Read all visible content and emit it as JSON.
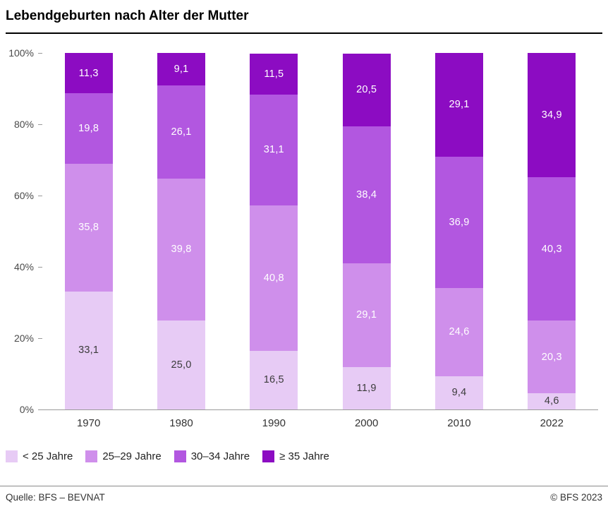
{
  "header": {
    "title": "Lebendgeburten nach Alter der Mutter"
  },
  "chart_data": {
    "type": "bar",
    "stacked": true,
    "title": "Lebendgeburten nach Alter der Mutter",
    "categories": [
      "1970",
      "1980",
      "1990",
      "2000",
      "2010",
      "2022"
    ],
    "series": [
      {
        "name": "< 25 Jahre",
        "color": "#e7cbf5",
        "label_color": "#3b3b3b",
        "values": [
          33.1,
          25.0,
          16.5,
          11.9,
          9.4,
          4.6
        ],
        "labels": [
          "33,1",
          "25,0",
          "16,5",
          "11,9",
          "9,4",
          "4,6"
        ]
      },
      {
        "name": "25–29 Jahre",
        "color": "#cf8feb",
        "label_color": "#ffffff",
        "values": [
          35.8,
          39.8,
          40.8,
          29.1,
          24.6,
          20.3
        ],
        "labels": [
          "35,8",
          "39,8",
          "40,8",
          "29,1",
          "24,6",
          "20,3"
        ]
      },
      {
        "name": "30–34 Jahre",
        "color": "#b257e0",
        "label_color": "#ffffff",
        "values": [
          19.8,
          26.1,
          31.1,
          38.4,
          36.9,
          40.3
        ],
        "labels": [
          "19,8",
          "26,1",
          "31,1",
          "38,4",
          "36,9",
          "40,3"
        ]
      },
      {
        "name": "≥ 35 Jahre",
        "color": "#8c0cc2",
        "label_color": "#ffffff",
        "values": [
          11.3,
          9.1,
          11.5,
          20.5,
          29.1,
          34.9
        ],
        "labels": [
          "11,3",
          "9,1",
          "11,5",
          "20,5",
          "29,1",
          "34,9"
        ]
      }
    ],
    "xlabel": "",
    "ylabel": "",
    "ylim": [
      0,
      100
    ],
    "yticks": [
      "0%",
      "20%",
      "40%",
      "60%",
      "80%",
      "100%"
    ],
    "grid": false,
    "legend_position": "bottom"
  },
  "footer": {
    "source": "Quelle: BFS – BEVNAT",
    "copyright": "© BFS 2023"
  }
}
